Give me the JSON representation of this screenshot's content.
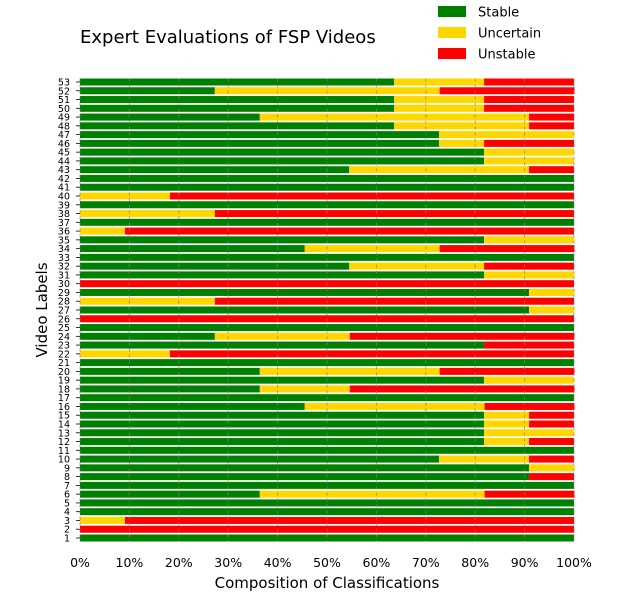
{
  "chart_data": {
    "type": "bar",
    "orientation": "horizontal",
    "stacked": true,
    "title": "Expert Evaluations of FSP Videos",
    "xlabel": "Composition of Classifications",
    "ylabel": "Video Labels",
    "xlim": [
      0,
      100
    ],
    "x_ticks": [
      "0%",
      "10%",
      "20%",
      "30%",
      "40%",
      "50%",
      "60%",
      "70%",
      "80%",
      "90%",
      "100%"
    ],
    "grid": "vertical dashed",
    "legend_position": "top-right",
    "colors": {
      "Stable": "#008000",
      "Uncertain": "#ffd700",
      "Unstable": "#ff0000"
    },
    "categories": [
      "1",
      "2",
      "3",
      "4",
      "5",
      "6",
      "7",
      "8",
      "9",
      "10",
      "11",
      "12",
      "13",
      "14",
      "15",
      "16",
      "17",
      "18",
      "19",
      "20",
      "21",
      "22",
      "23",
      "24",
      "25",
      "26",
      "27",
      "28",
      "29",
      "30",
      "31",
      "32",
      "33",
      "34",
      "35",
      "36",
      "37",
      "38",
      "39",
      "40",
      "41",
      "42",
      "43",
      "44",
      "45",
      "46",
      "47",
      "48",
      "49",
      "50",
      "51",
      "52",
      "53"
    ],
    "series": [
      {
        "name": "Stable",
        "values": [
          100,
          0,
          0,
          100,
          100,
          36.4,
          100,
          90.9,
          90.9,
          72.7,
          100,
          81.8,
          81.8,
          81.8,
          81.8,
          45.5,
          100,
          36.4,
          81.8,
          36.4,
          100,
          0,
          81.8,
          27.3,
          100,
          0,
          90.9,
          0,
          90.9,
          0,
          81.8,
          54.5,
          100,
          45.5,
          81.8,
          0,
          100,
          0,
          100,
          0,
          100,
          100,
          54.5,
          81.8,
          81.8,
          72.7,
          72.7,
          63.6,
          36.4,
          63.6,
          63.6,
          27.3,
          63.6
        ]
      },
      {
        "name": "Uncertain",
        "values": [
          0,
          0,
          9.1,
          0,
          0,
          45.5,
          0,
          0,
          9.1,
          18.2,
          0,
          9.1,
          18.2,
          9.1,
          9.1,
          36.4,
          0,
          18.2,
          18.2,
          36.4,
          0,
          18.2,
          0,
          27.3,
          0,
          0,
          9.1,
          27.3,
          9.1,
          0,
          18.2,
          27.3,
          0,
          27.3,
          18.2,
          9.1,
          0,
          27.3,
          0,
          18.2,
          0,
          0,
          36.4,
          18.2,
          18.2,
          9.1,
          27.3,
          27.3,
          54.5,
          18.2,
          18.2,
          45.5,
          18.2
        ]
      },
      {
        "name": "Unstable",
        "values": [
          0,
          100,
          90.9,
          0,
          0,
          18.2,
          0,
          9.1,
          0,
          9.1,
          0,
          9.1,
          0,
          9.1,
          9.1,
          18.2,
          0,
          45.5,
          0,
          27.3,
          0,
          81.8,
          18.2,
          45.5,
          0,
          100,
          0,
          72.7,
          0,
          100,
          0,
          18.2,
          0,
          27.3,
          0,
          90.9,
          0,
          72.7,
          0,
          81.8,
          0,
          0,
          9.1,
          0,
          0,
          18.2,
          0,
          9.1,
          9.1,
          18.2,
          18.2,
          27.3,
          18.2
        ]
      }
    ]
  }
}
